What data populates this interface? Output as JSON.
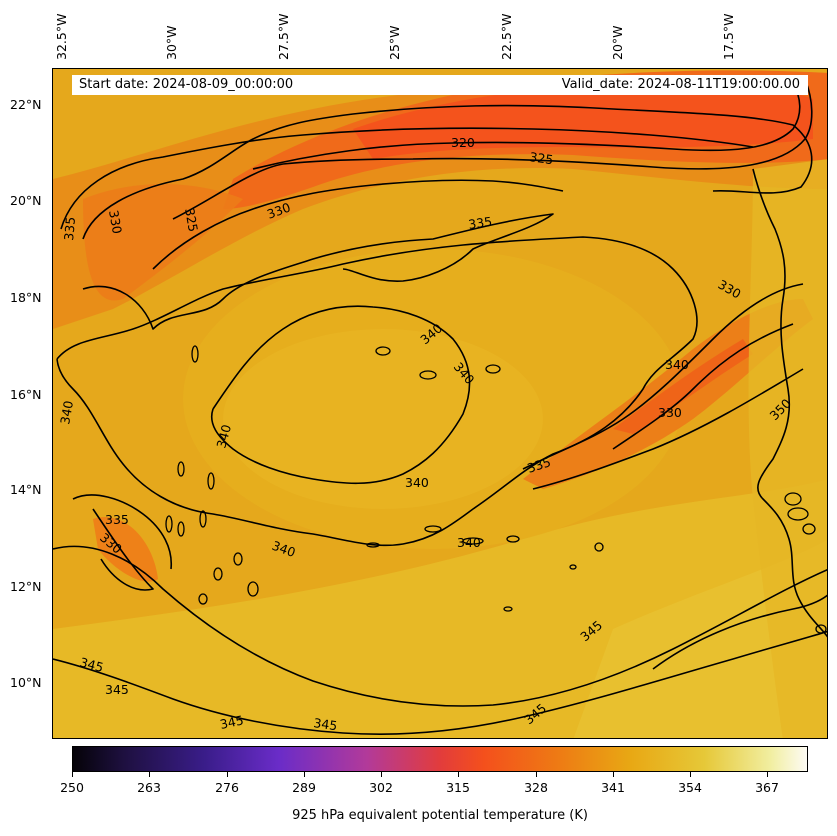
{
  "header": {
    "start_date": "Start date: 2024-08-09_00:00:00",
    "valid_date": "Valid_date: 2024-08-11T19:00:00.00"
  },
  "lon_labels": [
    "32.5°W",
    "30°W",
    "27.5°W",
    "25°W",
    "22.5°W",
    "20°W",
    "17.5°W"
  ],
  "lat_labels": [
    "22°N",
    "20°N",
    "18°N",
    "16°N",
    "14°N",
    "12°N",
    "10°N"
  ],
  "contour_labels": [
    "320",
    "325",
    "330",
    "335",
    "340",
    "345",
    "350"
  ],
  "colorbar": {
    "title": "925 hPa equivalent potential temperature (K)",
    "ticks": [
      "250",
      "263",
      "276",
      "289",
      "302",
      "315",
      "328",
      "341",
      "354",
      "367"
    ],
    "colormap": "CMRmap-like",
    "colors": [
      "#050308",
      "#3a1d8a",
      "#6a2cc8",
      "#e23c3c",
      "#f4501c",
      "#e8a814",
      "#f1eea0",
      "#fdfbf4"
    ]
  }
}
